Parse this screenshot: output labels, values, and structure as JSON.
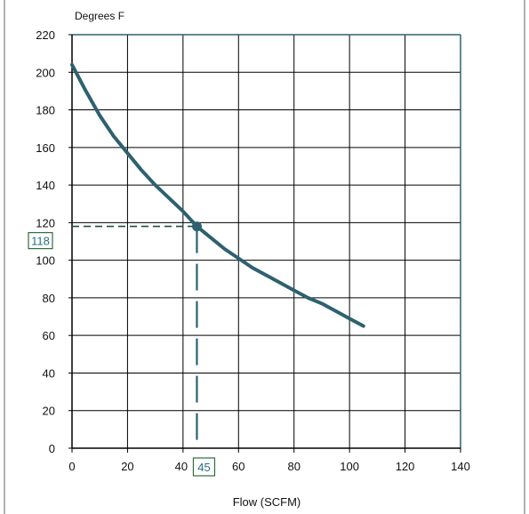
{
  "chart_data": {
    "type": "line",
    "title": "",
    "ylabel": "Degrees F",
    "xlabel": "Flow (SCFM)",
    "xlim": [
      0,
      140
    ],
    "ylim": [
      0,
      220
    ],
    "x_ticks": [
      0,
      20,
      40,
      60,
      80,
      100,
      120,
      140
    ],
    "y_ticks": [
      0,
      20,
      40,
      60,
      80,
      100,
      120,
      140,
      160,
      180,
      200,
      220
    ],
    "grid": true,
    "series": [
      {
        "x": [
          0,
          5,
          10,
          15,
          20,
          25,
          30,
          35,
          40,
          45,
          50,
          55,
          60,
          65,
          70,
          75,
          80,
          85,
          90,
          95,
          100,
          105
        ],
        "y": [
          204,
          190,
          177,
          166,
          157,
          148,
          140,
          133,
          126,
          118,
          112,
          106,
          101,
          96,
          92,
          88,
          84,
          80,
          77,
          73,
          69,
          65
        ]
      }
    ],
    "highlight": {
      "x": 45,
      "y": 118,
      "x_label": "45",
      "y_label": "118"
    },
    "colors": {
      "line": "#2e6170",
      "axis": "#2e6170",
      "grid": "#000000",
      "highlight_box": "#2e6f3e",
      "highlight_text": "#2a6f83"
    }
  }
}
